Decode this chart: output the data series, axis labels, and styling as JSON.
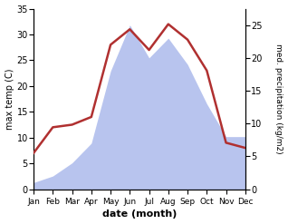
{
  "months": [
    "Jan",
    "Feb",
    "Mar",
    "Apr",
    "May",
    "Jun",
    "Jul",
    "Aug",
    "Sep",
    "Oct",
    "Nov",
    "Dec"
  ],
  "temperature": [
    7,
    12,
    12.5,
    14,
    28,
    31,
    27,
    32,
    29,
    23,
    9,
    8
  ],
  "precipitation": [
    1,
    2,
    4,
    7,
    18,
    25,
    20,
    23,
    19,
    13,
    8,
    8
  ],
  "temp_color": "#b03030",
  "precip_fill_color": "#b8c4ee",
  "ylabel_left": "max temp (C)",
  "ylabel_right": "med. precipitation (kg/m2)",
  "xlabel": "date (month)",
  "ylim_left": [
    0,
    35
  ],
  "ylim_right": [
    0,
    27.5
  ],
  "yticks_left": [
    0,
    5,
    10,
    15,
    20,
    25,
    30,
    35
  ],
  "yticks_right": [
    0,
    5,
    10,
    15,
    20,
    25
  ],
  "background_color": "#ffffff",
  "temp_linewidth": 1.8
}
